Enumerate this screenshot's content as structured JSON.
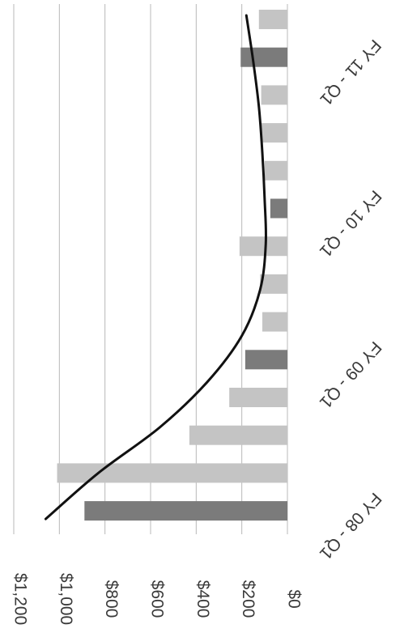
{
  "chart_data": {
    "type": "bar",
    "orientation": "vertical-bars-rotated-90",
    "x_tick_labels": [
      "$0",
      "$200",
      "$400",
      "$600",
      "$800",
      "$1,000",
      "$1,200"
    ],
    "x_range": [
      0,
      1200
    ],
    "category_labels": [
      "FY 08 - Q1",
      "FY 09 - Q1",
      "FY 10 - Q1",
      "FY 11 - Q1"
    ],
    "bars": [
      {
        "value": 890,
        "shade": "dark"
      },
      {
        "value": 1010,
        "shade": "light"
      },
      {
        "value": 430,
        "shade": "light"
      },
      {
        "value": 255,
        "shade": "light"
      },
      {
        "value": 185,
        "shade": "dark"
      },
      {
        "value": 110,
        "shade": "light"
      },
      {
        "value": 120,
        "shade": "light"
      },
      {
        "value": 210,
        "shade": "light"
      },
      {
        "value": 75,
        "shade": "dark"
      },
      {
        "value": 100,
        "shade": "light"
      },
      {
        "value": 115,
        "shade": "light"
      },
      {
        "value": 115,
        "shade": "light"
      },
      {
        "value": 205,
        "shade": "dark"
      },
      {
        "value": 125,
        "shade": "light"
      }
    ],
    "trendline": {
      "type": "curve",
      "values": [
        1060,
        830,
        560,
        350,
        200,
        120,
        95,
        100,
        110,
        125,
        150,
        180
      ]
    },
    "grid": true,
    "legend": "none",
    "colors": {
      "dark": "#7b7b7b",
      "light": "#c4c4c4",
      "trend": "#111111",
      "grid": "#b8b8b8"
    }
  }
}
